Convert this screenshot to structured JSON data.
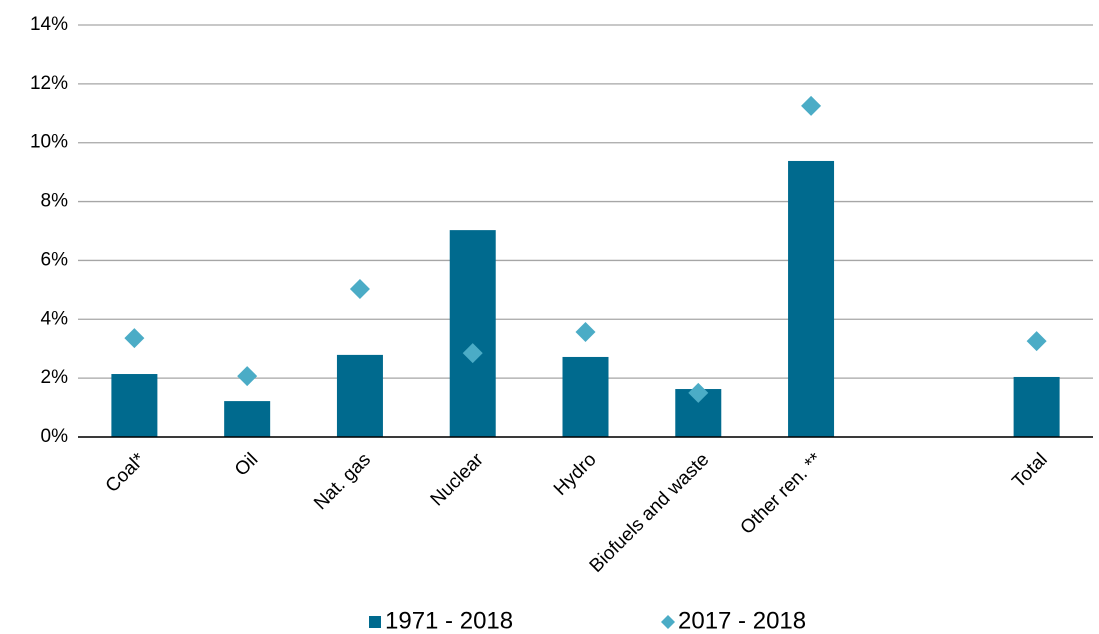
{
  "chart_data": {
    "type": "bar",
    "categories": [
      "Coal*",
      "Oil",
      "Nat. gas",
      "Nuclear",
      "Hydro",
      "Biofuels and waste",
      "Other ren. **",
      null,
      "Total"
    ],
    "series": [
      {
        "name": "1971 - 2018",
        "type": "bar",
        "color": "#006a8e",
        "values": [
          2.14,
          1.22,
          2.79,
          7.03,
          2.72,
          1.63,
          9.38,
          null,
          2.04
        ]
      },
      {
        "name": "2017 - 2018",
        "type": "scatter",
        "color": "#4bacc6",
        "values": [
          3.36,
          2.07,
          5.03,
          2.85,
          3.57,
          1.5,
          11.25,
          null,
          3.26
        ]
      }
    ],
    "ylim": [
      0,
      14
    ],
    "yticks": [
      {
        "value": 0,
        "label": "0%"
      },
      {
        "value": 2,
        "label": "2%"
      },
      {
        "value": 4,
        "label": "4%"
      },
      {
        "value": 6,
        "label": "6%"
      },
      {
        "value": 8,
        "label": "8%"
      },
      {
        "value": 10,
        "label": "10%"
      },
      {
        "value": 12,
        "label": "12%"
      },
      {
        "value": 14,
        "label": "14%"
      }
    ],
    "grid": true,
    "legend": "bottom"
  }
}
